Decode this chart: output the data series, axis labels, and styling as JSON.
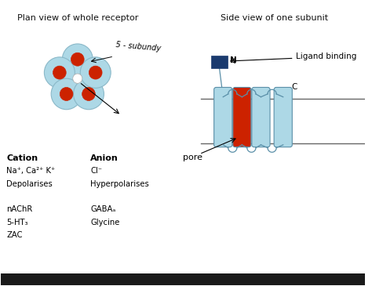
{
  "bg_color": "#f0f0f0",
  "panel_bg": "#ffffff",
  "title_left": "Plan view of whole receptor",
  "title_right": "Side view of one subunit",
  "light_blue": "#add8e6",
  "dark_blue": "#4a7fa5",
  "red_color": "#cc2200",
  "navy_blue": "#1a3a6e",
  "text_color": "#111111",
  "cation_bold": "Cation",
  "anion_bold": "Anion",
  "ligand_label": "Ligand binding",
  "n_label": "N",
  "c_label": "C",
  "pore_label": "pore",
  "handwriting": "5 - subundy",
  "bottom_bar": "#1a1a1a"
}
